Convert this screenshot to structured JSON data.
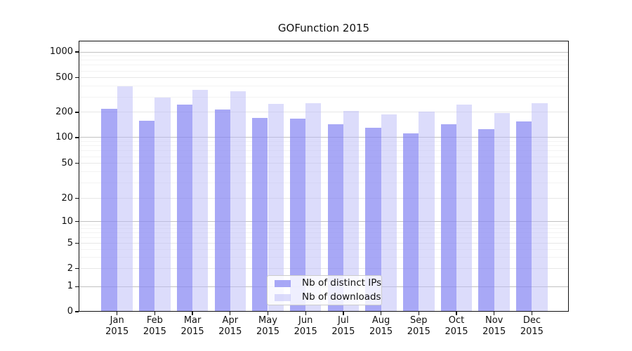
{
  "chart_data": {
    "type": "bar",
    "title": "GOFunction 2015",
    "year_label": "2015",
    "categories": [
      "Jan",
      "Feb",
      "Mar",
      "Apr",
      "May",
      "Jun",
      "Jul",
      "Aug",
      "Sep",
      "Oct",
      "Nov",
      "Dec"
    ],
    "series": [
      {
        "name": "Nb of distinct IPs",
        "color": "rgba(135,135,243,0.72)",
        "values": [
          220,
          160,
          245,
          215,
          172,
          168,
          145,
          131,
          113,
          143,
          125,
          155
        ]
      },
      {
        "name": "Nb of downloads",
        "color": "rgba(185,185,247,0.50)",
        "values": [
          400,
          295,
          365,
          350,
          248,
          255,
          207,
          190,
          203,
          245,
          195,
          255
        ]
      }
    ],
    "yscale": "log",
    "yticks": [
      1000,
      500,
      200,
      100,
      50,
      20,
      10,
      5,
      2,
      1,
      0
    ],
    "ylim": [
      0,
      1350
    ],
    "xlabel": "",
    "ylabel": "",
    "grid": true,
    "legend_position": "inside-bottom-center"
  }
}
